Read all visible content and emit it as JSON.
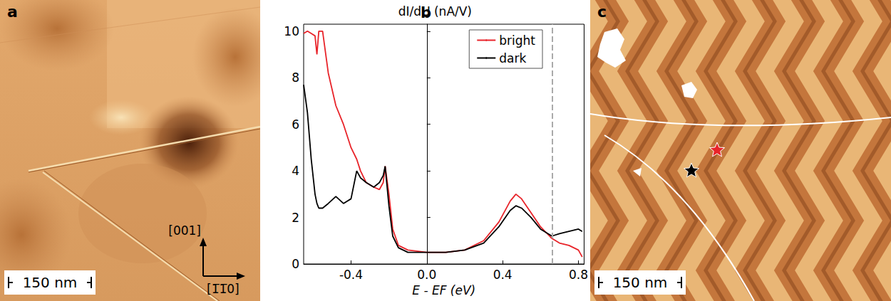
{
  "panels": {
    "a": {
      "label": "a",
      "scale_bar": "150 nm",
      "directions": [
        "[001]",
        "[1̅1̅0]"
      ]
    },
    "c": {
      "label": "c",
      "scale_bar": "150 nm"
    }
  },
  "chart_data": {
    "type": "line",
    "title": "b",
    "y_label": "dI/dU (nA/V)",
    "x_label": "E - EF (eV)",
    "x": [
      -0.65,
      -0.63,
      -0.61,
      -0.59,
      -0.58,
      -0.57,
      -0.55,
      -0.52,
      -0.48,
      -0.44,
      -0.4,
      -0.37,
      -0.35,
      -0.32,
      -0.28,
      -0.25,
      -0.23,
      -0.22,
      -0.2,
      -0.18,
      -0.15,
      -0.1,
      0,
      0.1,
      0.2,
      0.3,
      0.38,
      0.44,
      0.47,
      0.5,
      0.55,
      0.6,
      0.66,
      0.7,
      0.75,
      0.8,
      0.82
    ],
    "series": [
      {
        "name": "bright",
        "color": "#e8242a",
        "values": [
          9.9,
          10,
          9.9,
          9.8,
          9.0,
          10,
          10,
          8.2,
          6.8,
          6.0,
          5.0,
          4.5,
          4.0,
          3.5,
          3.3,
          3.2,
          3.5,
          4.2,
          3.0,
          1.5,
          0.8,
          0.6,
          0.5,
          0.5,
          0.6,
          1.0,
          1.8,
          2.7,
          3.0,
          2.8,
          2.2,
          1.6,
          1.1,
          0.9,
          0.8,
          0.6,
          0.3
        ]
      },
      {
        "name": "dark",
        "color": "#000000",
        "values": [
          7.7,
          6.5,
          4.5,
          3.0,
          2.6,
          2.4,
          2.4,
          2.6,
          2.9,
          2.6,
          2.8,
          4.0,
          3.7,
          3.5,
          3.3,
          3.5,
          3.8,
          4.2,
          2.5,
          1.2,
          0.7,
          0.5,
          0.5,
          0.5,
          0.6,
          0.9,
          1.6,
          2.3,
          2.5,
          2.4,
          2.0,
          1.5,
          1.2,
          1.3,
          1.4,
          1.5,
          1.4
        ]
      }
    ],
    "vline": 0.66,
    "xlim": [
      -0.65,
      0.83
    ],
    "xticks": [
      -0.4,
      {
        "value": 0,
        "label": "0.0"
      },
      0.4,
      0.8
    ],
    "ylim": [
      0,
      10.3
    ],
    "yticks": [
      0,
      2,
      4,
      6,
      8,
      10
    ],
    "legend": "top-right",
    "grid": false
  }
}
